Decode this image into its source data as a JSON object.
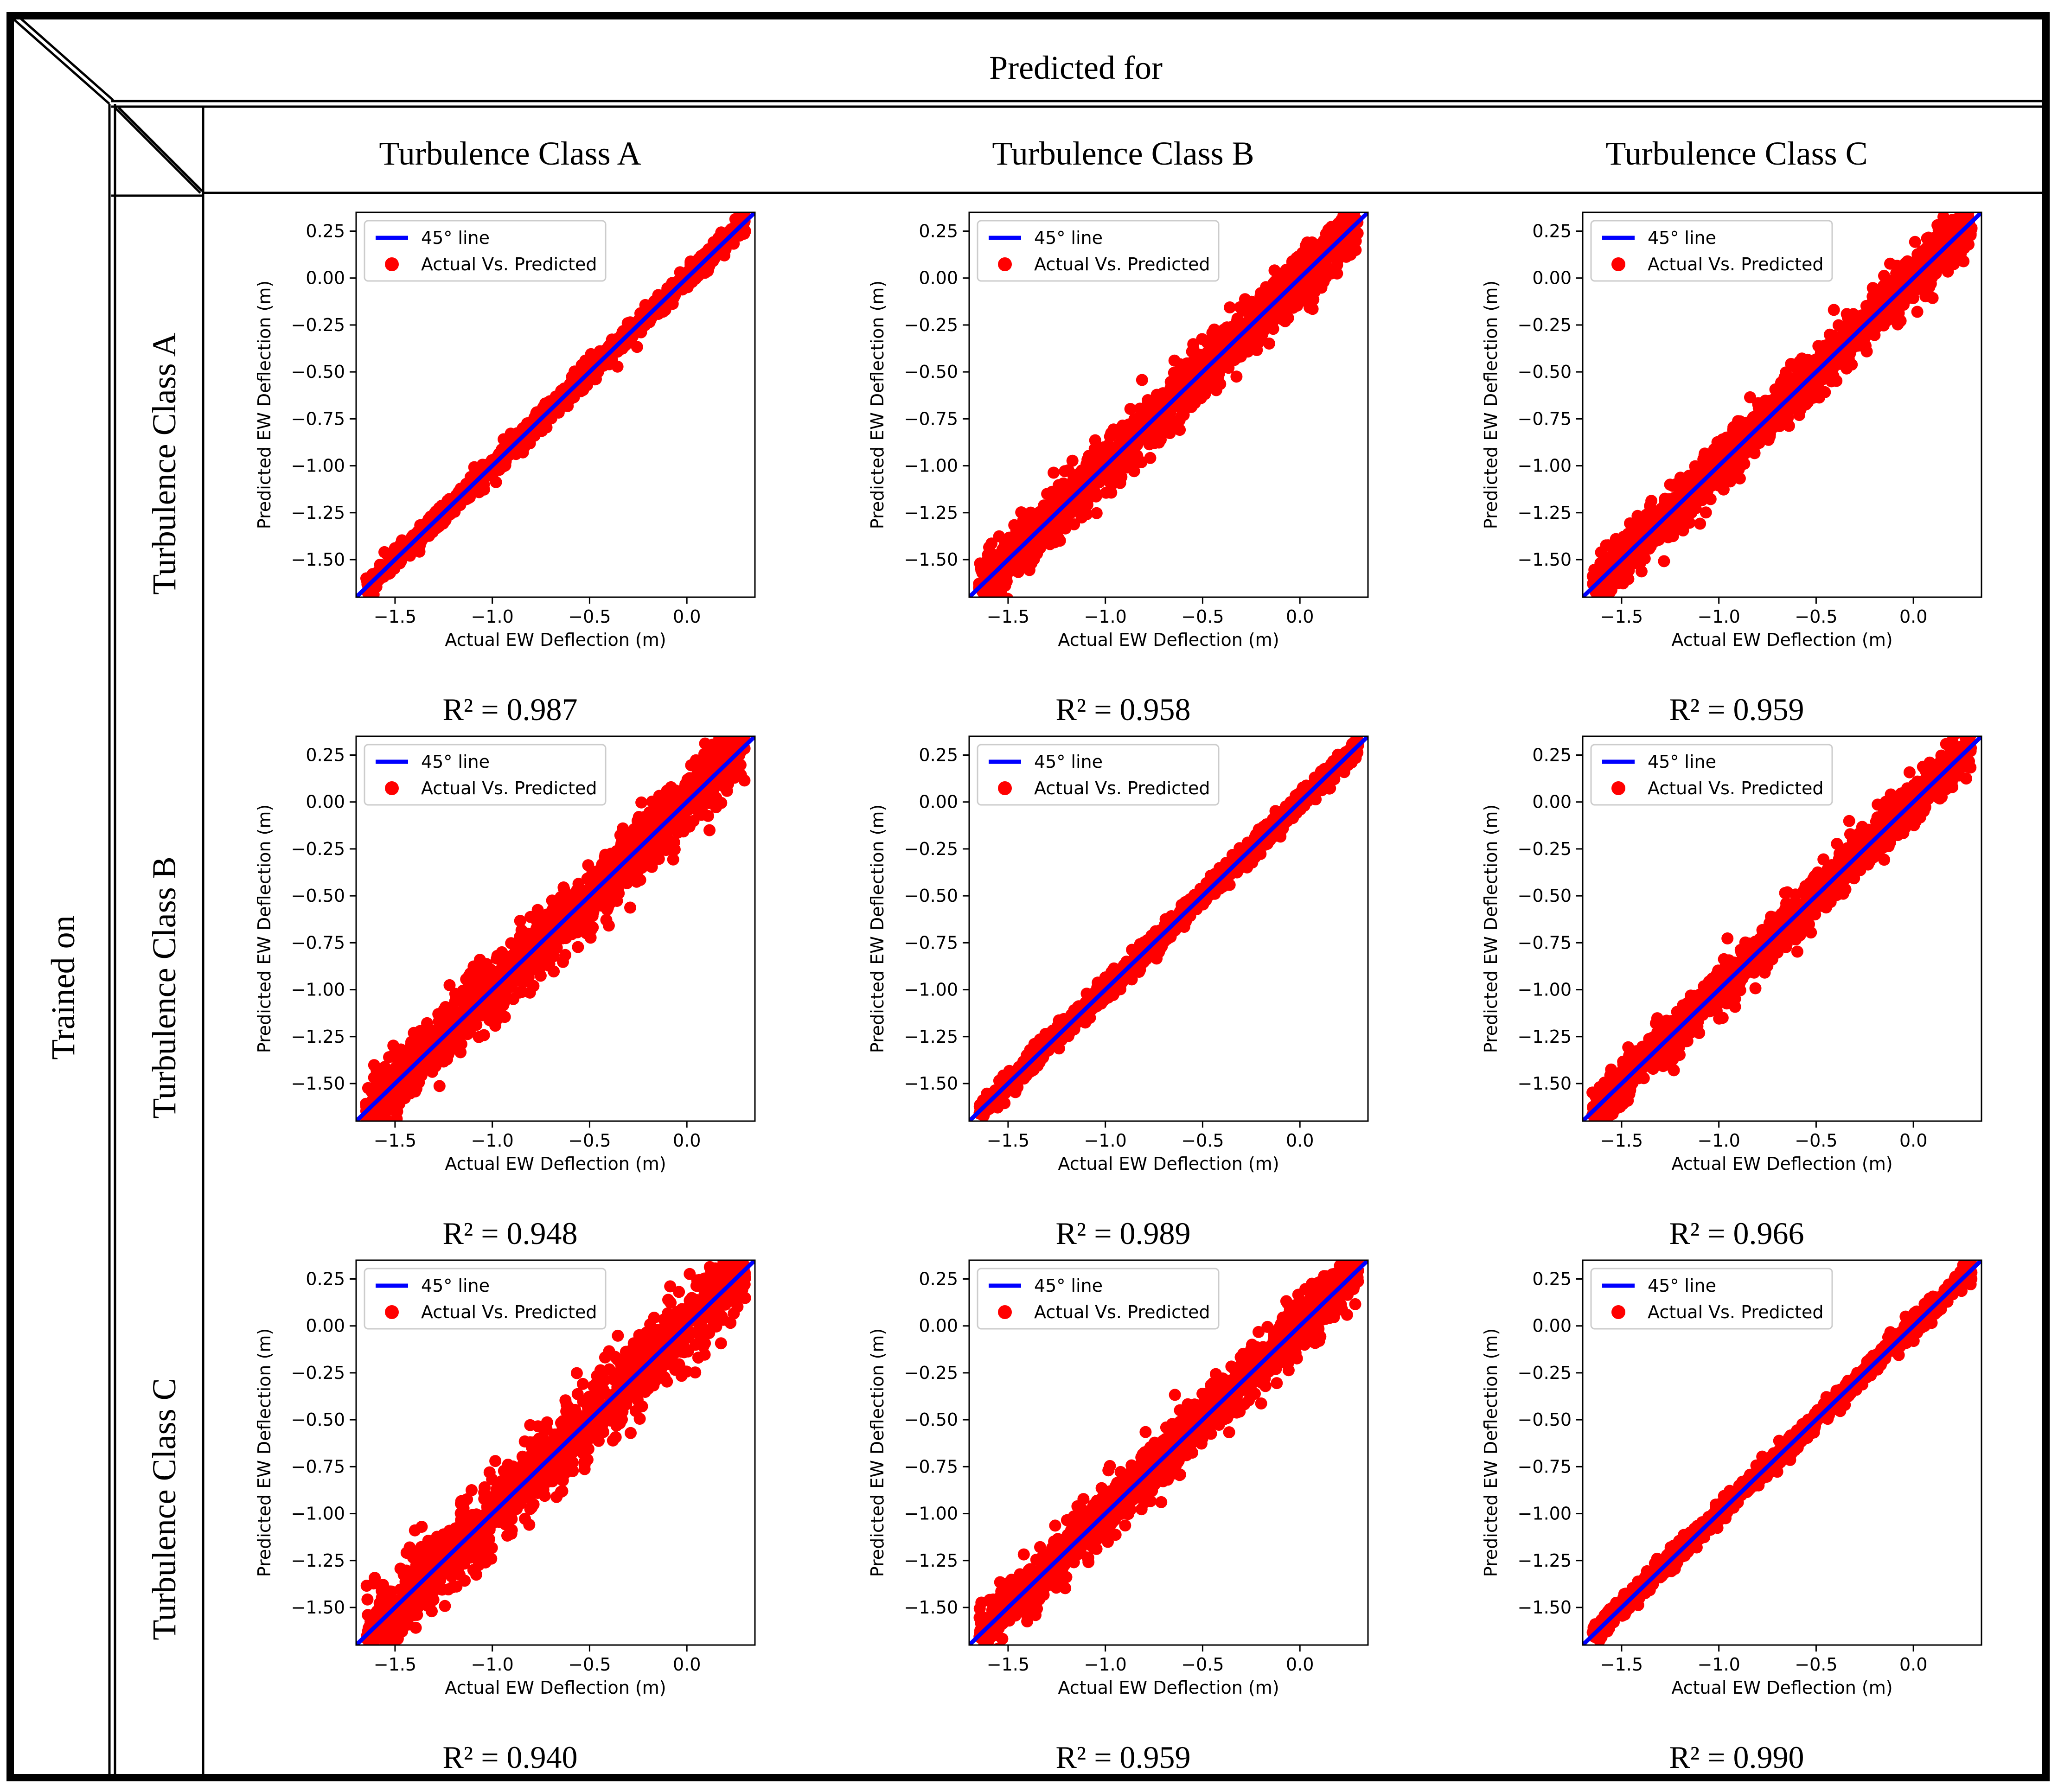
{
  "header": {
    "predicted_for": "Predicted for",
    "trained_on": "Trained on"
  },
  "columns": [
    "Turbulence Class A",
    "Turbulence Class B",
    "Turbulence Class C"
  ],
  "rows": [
    "Turbulence Class A",
    "Turbulence Class B",
    "Turbulence Class C"
  ],
  "colors": {
    "line": "#0000ff",
    "points": "#ff0000",
    "frame": "#000000"
  },
  "chart_data": [
    {
      "type": "scatter",
      "row": "Turbulence Class A",
      "column": "Turbulence Class A",
      "r2_label": "R² = 0.987",
      "r2": 0.987,
      "spread": 0.05
    },
    {
      "type": "scatter",
      "row": "Turbulence Class A",
      "column": "Turbulence Class B",
      "r2_label": "R² = 0.958",
      "r2": 0.958,
      "spread": 0.13
    },
    {
      "type": "scatter",
      "row": "Turbulence Class A",
      "column": "Turbulence Class C",
      "r2_label": "R² = 0.959",
      "r2": 0.959,
      "spread": 0.12
    },
    {
      "type": "scatter",
      "row": "Turbulence Class B",
      "column": "Turbulence Class A",
      "r2_label": "R² = 0.948",
      "r2": 0.948,
      "spread": 0.15
    },
    {
      "type": "scatter",
      "row": "Turbulence Class B",
      "column": "Turbulence Class B",
      "r2_label": "R² = 0.989",
      "r2": 0.989,
      "spread": 0.05
    },
    {
      "type": "scatter",
      "row": "Turbulence Class B",
      "column": "Turbulence Class C",
      "r2_label": "R² = 0.966",
      "r2": 0.966,
      "spread": 0.11
    },
    {
      "type": "scatter",
      "row": "Turbulence Class C",
      "column": "Turbulence Class A",
      "r2_label": "R² = 0.940",
      "r2": 0.94,
      "spread": 0.17
    },
    {
      "type": "scatter",
      "row": "Turbulence Class C",
      "column": "Turbulence Class B",
      "r2_label": "R² = 0.959",
      "r2": 0.959,
      "spread": 0.13
    },
    {
      "type": "scatter",
      "row": "Turbulence Class C",
      "column": "Turbulence Class C",
      "r2_label": "R² = 0.990",
      "r2": 0.99,
      "spread": 0.05
    }
  ],
  "plot_common": {
    "xlabel": "Actual EW Deflection (m)",
    "ylabel": "Predicted EW Deflection (m)",
    "xlim": [
      -1.7,
      0.35
    ],
    "ylim": [
      -1.7,
      0.35
    ],
    "xticks": [
      -1.5,
      -1.0,
      -0.5,
      0.0
    ],
    "xtick_labels": [
      "−1.5",
      "−1.0",
      "−0.5",
      "0.0"
    ],
    "yticks": [
      0.25,
      0.0,
      -0.25,
      -0.5,
      -0.75,
      -1.0,
      -1.25,
      -1.5
    ],
    "ytick_labels": [
      "0.25",
      "0.00",
      "−0.25",
      "−0.50",
      "−0.75",
      "−1.00",
      "−1.25",
      "−1.50"
    ],
    "legend": [
      "45° line",
      "Actual Vs. Predicted"
    ]
  }
}
